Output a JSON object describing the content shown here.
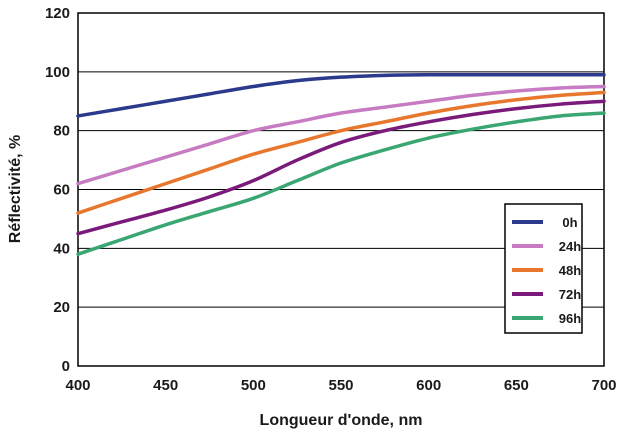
{
  "chart_data": {
    "type": "line",
    "xlabel": "Longueur d'onde, nm",
    "ylabel": "Réflectivité, %",
    "xlim": [
      400,
      700
    ],
    "ylim": [
      0,
      120
    ],
    "x_ticks": [
      400,
      450,
      500,
      550,
      600,
      650,
      700
    ],
    "y_ticks": [
      0,
      20,
      40,
      60,
      80,
      100,
      120
    ],
    "grid": "horizontal",
    "legend_position": "right",
    "x": [
      400,
      425,
      450,
      475,
      500,
      525,
      550,
      575,
      600,
      625,
      650,
      675,
      700
    ],
    "series": [
      {
        "name": "0h",
        "color": "#2b3a8c",
        "values": [
          85,
          87.5,
          90,
          92.5,
          95,
          97,
          98.2,
          98.8,
          99,
          99,
          99,
          99,
          99
        ]
      },
      {
        "name": "24h",
        "color": "#c77bc2",
        "values": [
          62,
          66.5,
          71,
          75.5,
          80,
          83,
          86,
          88,
          90,
          92,
          93.5,
          94.5,
          95
        ]
      },
      {
        "name": "48h",
        "color": "#e8772e",
        "values": [
          52,
          57,
          62,
          67,
          72,
          76,
          80,
          83,
          86,
          88.5,
          90.5,
          92,
          93
        ]
      },
      {
        "name": "72h",
        "color": "#7a1a7a",
        "values": [
          45,
          49,
          53,
          57.5,
          63,
          70,
          76,
          80,
          83,
          85.5,
          87.5,
          89,
          90
        ]
      },
      {
        "name": "96h",
        "color": "#3aa672",
        "values": [
          38,
          43,
          48,
          52.5,
          57,
          63,
          69,
          73.5,
          77.5,
          80.5,
          83,
          85,
          86
        ]
      }
    ]
  }
}
